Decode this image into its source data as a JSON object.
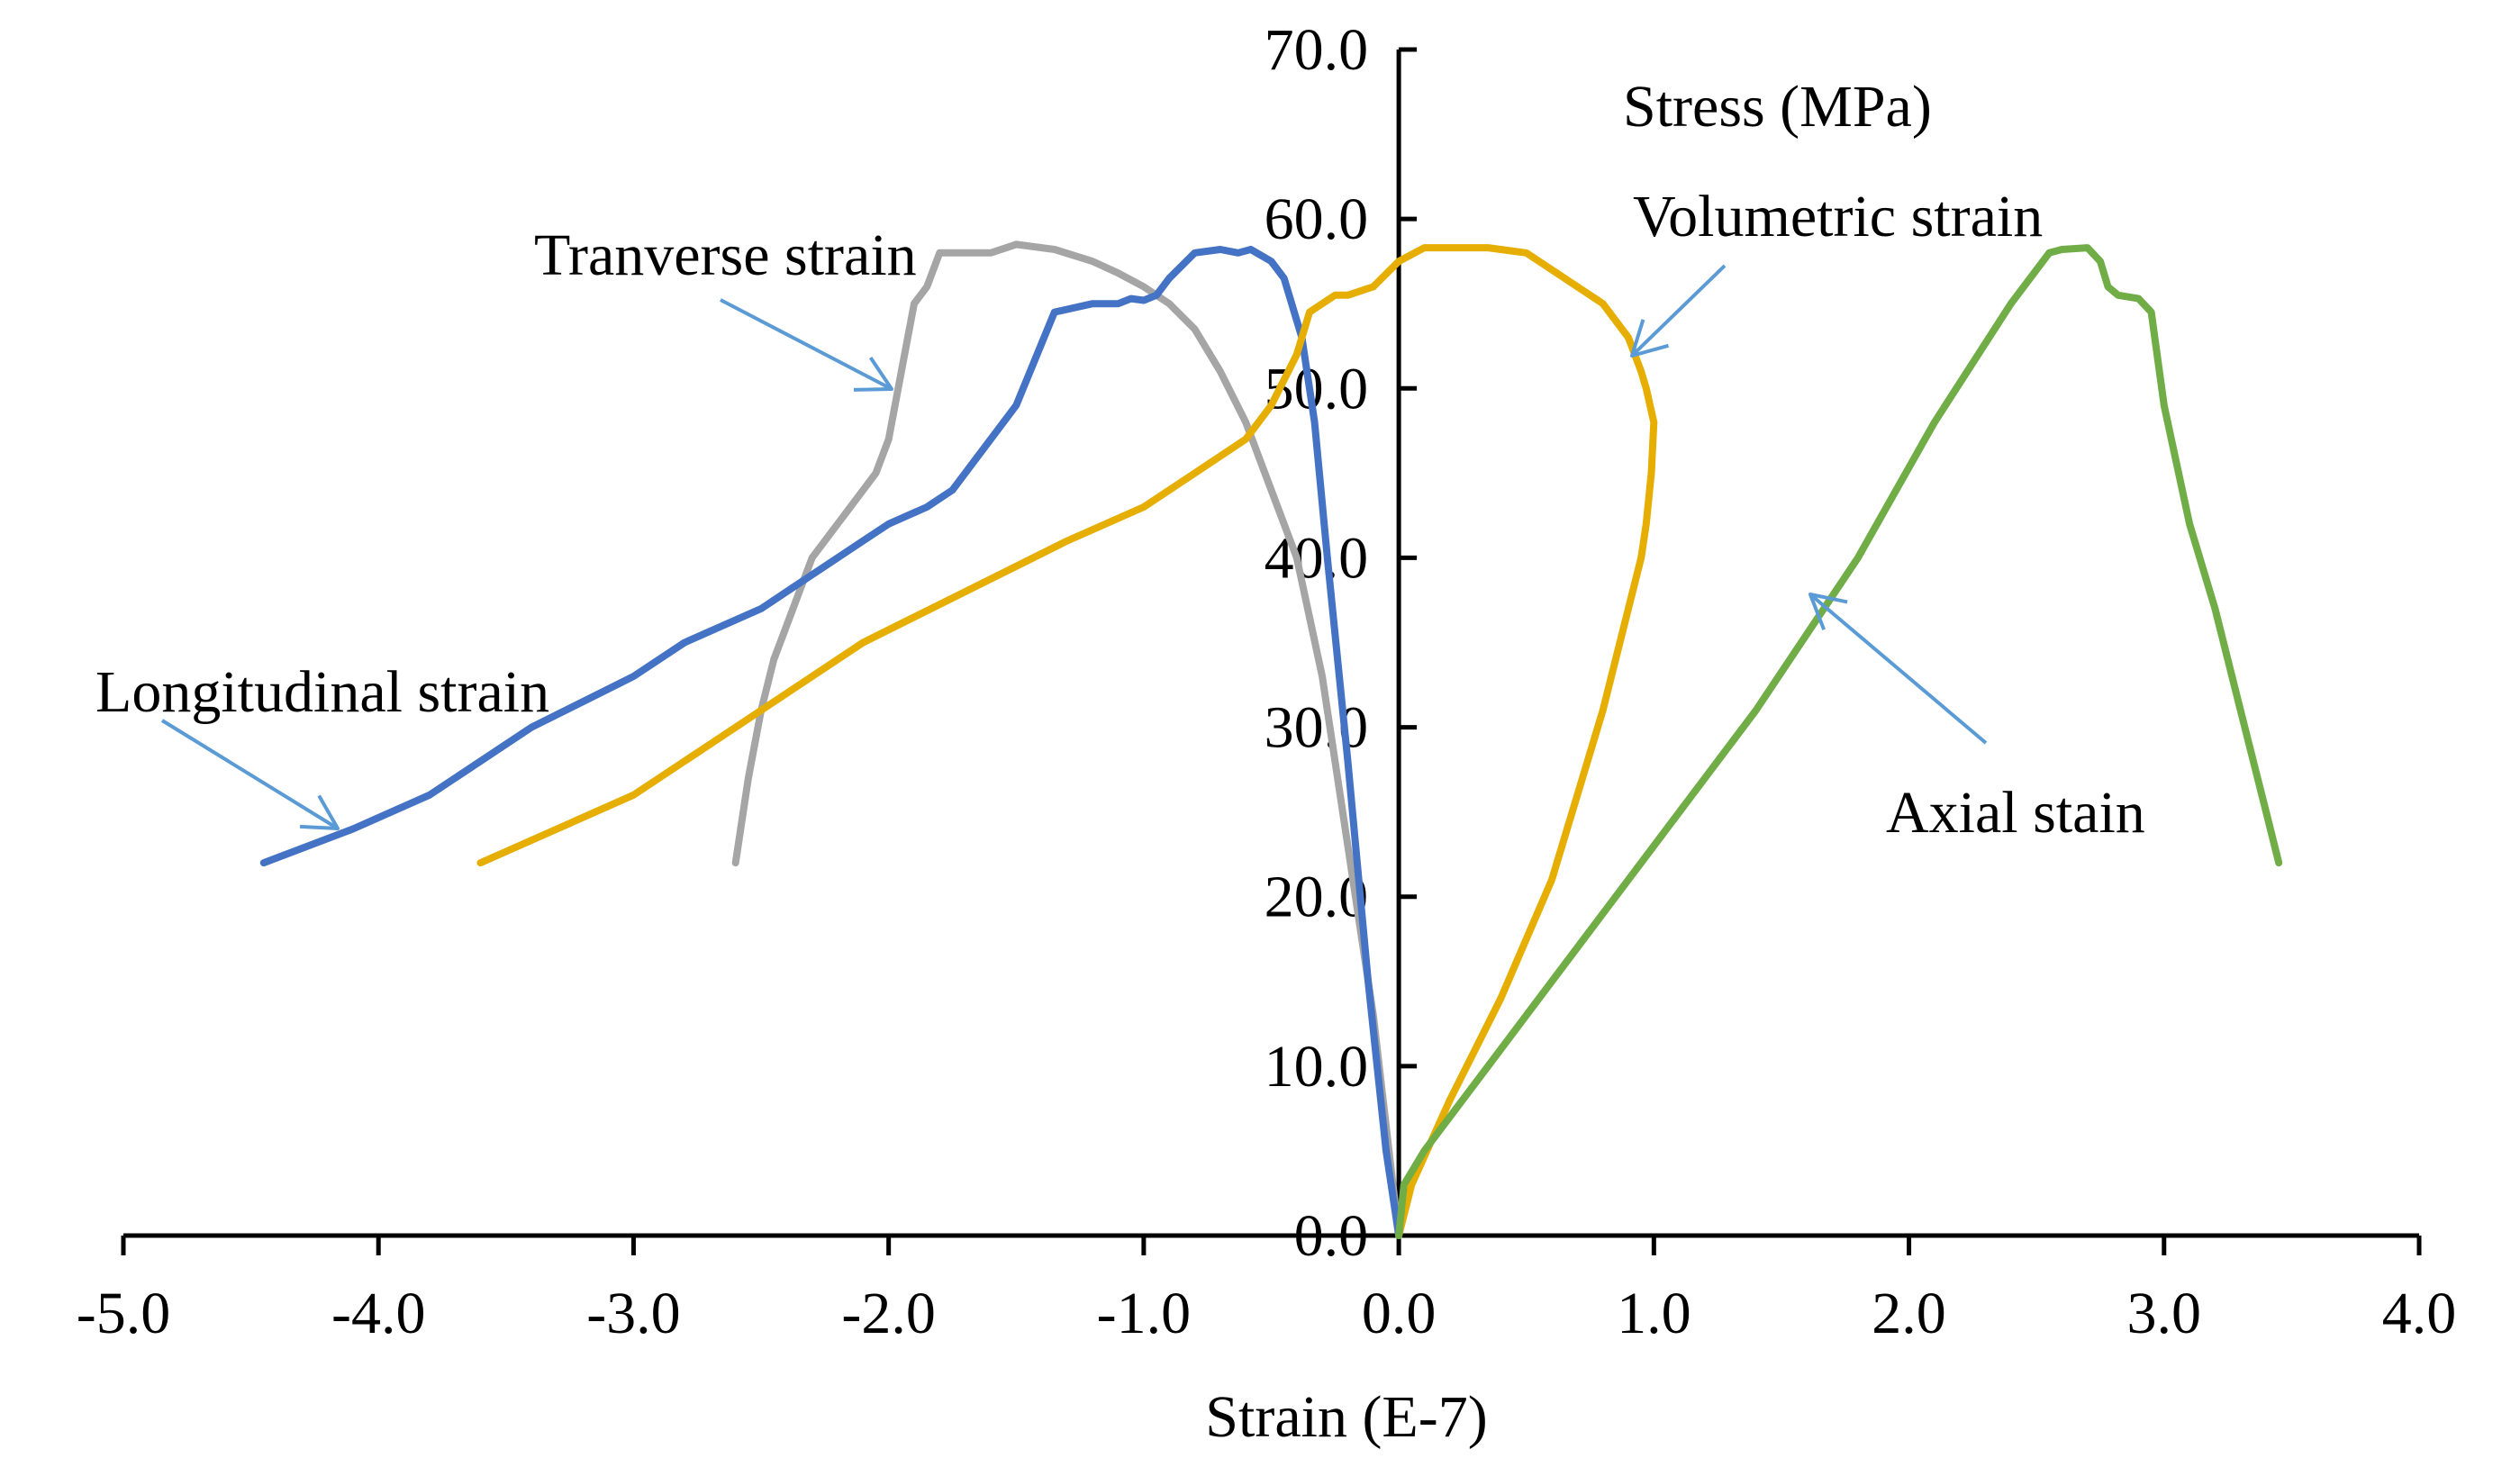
{
  "chart_data": {
    "type": "line",
    "title": "",
    "xlabel": "Strain (E-7)",
    "ylabel": "Stress (MPa)",
    "xlim": [
      -5.0,
      4.0
    ],
    "ylim": [
      0.0,
      70.0
    ],
    "grid": false,
    "x_ticks": [
      -5.0,
      -4.0,
      -3.0,
      -2.0,
      -1.0,
      0.0,
      1.0,
      2.0,
      3.0,
      4.0
    ],
    "x_tick_labels": [
      "-5.0",
      "-4.0",
      "-3.0",
      "-2.0",
      "-1.0",
      "0.0",
      "1.0",
      "2.0",
      "3.0",
      "4.0"
    ],
    "y_ticks": [
      0,
      10,
      20,
      30,
      40,
      50,
      60,
      70
    ],
    "y_tick_labels": [
      "0.0",
      "10.0",
      "20.0",
      "30.0",
      "40.0",
      "50.0",
      "60.0",
      "70.0"
    ],
    "series": [
      {
        "name": "Longitudinal strain",
        "color": "#4472C4",
        "x": [
          0.0,
          -0.05,
          -0.12,
          -0.2,
          -0.28,
          -0.33,
          -0.38,
          -0.45,
          -0.5,
          -0.58,
          -0.63,
          -0.7,
          -0.8,
          -0.9,
          -0.95,
          -1.0,
          -1.05,
          -1.1,
          -1.2,
          -1.35,
          -1.5,
          -1.75,
          -1.85,
          -2.0,
          -2.1,
          -2.3,
          -2.5,
          -2.8,
          -3.0,
          -3.4,
          -3.8,
          -4.1,
          -4.45
        ],
        "y": [
          0.0,
          5.0,
          15.0,
          28.0,
          40.0,
          48.0,
          53.0,
          56.5,
          57.5,
          58.2,
          58.0,
          58.2,
          58.0,
          56.5,
          55.5,
          55.2,
          55.3,
          55.0,
          55.0,
          54.5,
          49.0,
          44.0,
          43.0,
          42.0,
          41.0,
          39.0,
          37.0,
          35.0,
          33.0,
          30.0,
          26.0,
          24.0,
          22.0
        ]
      },
      {
        "name": "Tranverse strain",
        "color": "#A5A5A5",
        "x": [
          0.0,
          -0.1,
          -0.2,
          -0.3,
          -0.4,
          -0.5,
          -0.6,
          -0.7,
          -0.8,
          -0.9,
          -1.0,
          -1.1,
          -1.2,
          -1.35,
          -1.5,
          -1.6,
          -1.8,
          -1.85,
          -1.9,
          -1.95,
          -2.0,
          -2.05,
          -2.15,
          -2.3,
          -2.4,
          -2.45,
          -2.5,
          -2.55,
          -2.6
        ],
        "y": [
          0.0,
          13.0,
          23.0,
          33.0,
          40.0,
          44.0,
          48.0,
          51.0,
          53.5,
          55.0,
          56.0,
          56.8,
          57.5,
          58.2,
          58.5,
          58.0,
          58.0,
          56.0,
          55.0,
          51.0,
          47.0,
          45.0,
          43.0,
          40.0,
          36.0,
          34.0,
          31.0,
          27.0,
          22.0
        ]
      },
      {
        "name": "Volumetric strain",
        "color": "#E5AE00",
        "x": [
          -3.6,
          -3.3,
          -3.0,
          -2.7,
          -2.4,
          -2.1,
          -1.7,
          -1.3,
          -1.0,
          -0.8,
          -0.6,
          -0.5,
          -0.4,
          -0.35,
          -0.3,
          -0.25,
          -0.2,
          -0.1,
          0.0,
          0.1,
          0.2,
          0.35,
          0.5,
          0.6,
          0.7,
          0.8,
          0.9,
          0.95,
          0.97,
          1.0,
          0.99,
          0.97,
          0.95,
          0.9,
          0.8,
          0.6,
          0.4,
          0.2,
          0.05,
          0.0
        ],
        "y": [
          22.0,
          24.0,
          26.0,
          29.0,
          32.0,
          35.0,
          38.0,
          41.0,
          43.0,
          45.0,
          47.0,
          49.0,
          52.0,
          54.5,
          55.0,
          55.5,
          55.5,
          56.0,
          57.5,
          58.3,
          58.3,
          58.3,
          58.0,
          57.0,
          56.0,
          55.0,
          53.0,
          51.0,
          50.0,
          48.0,
          45.0,
          42.0,
          40.0,
          37.0,
          31.0,
          21.0,
          14.0,
          8.0,
          3.0,
          0.0
        ]
      },
      {
        "name": "Axial stain",
        "color": "#70AD47",
        "x": [
          0.0,
          0.02,
          0.1,
          0.3,
          0.6,
          1.0,
          1.4,
          1.8,
          2.1,
          2.4,
          2.55,
          2.6,
          2.7,
          2.75,
          2.78,
          2.82,
          2.9,
          2.95,
          3.0,
          3.1,
          3.2,
          3.3,
          3.35,
          3.4,
          3.45
        ],
        "y": [
          0.0,
          3.0,
          5.0,
          9.0,
          15.0,
          23.0,
          31.0,
          40.0,
          48.0,
          55.0,
          58.0,
          58.2,
          58.3,
          57.5,
          56.0,
          55.5,
          55.3,
          54.5,
          49.0,
          42.0,
          37.0,
          31.0,
          28.0,
          25.0,
          22.0
        ]
      }
    ],
    "annotations": [
      {
        "name": "Longitudinal strain",
        "series": "Longitudinal strain"
      },
      {
        "name": "Tranverse strain",
        "series": "Tranverse strain"
      },
      {
        "name": "Volumetric strain",
        "series": "Volumetric strain"
      },
      {
        "name": "Axial stain",
        "series": "Axial stain"
      }
    ],
    "arrow_color": "#5B9BD5"
  }
}
